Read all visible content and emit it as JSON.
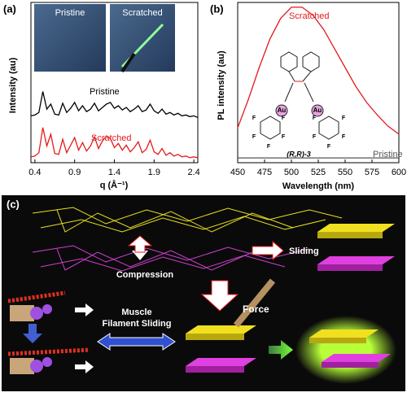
{
  "chart_data": [
    {
      "type": "line",
      "panel": "(a)",
      "xlabel": "q (Å⁻¹)",
      "ylabel": "Intensity (au)",
      "inset_labels": [
        "Pristine",
        "Scratched"
      ],
      "x": [
        0.35,
        0.4,
        0.45,
        0.5,
        0.55,
        0.6,
        0.65,
        0.7,
        0.75,
        0.8,
        0.85,
        0.9,
        0.95,
        1.0,
        1.05,
        1.1,
        1.15,
        1.2,
        1.25,
        1.3,
        1.35,
        1.4,
        1.45,
        1.5,
        1.55,
        1.6,
        1.65,
        1.7,
        1.75,
        1.8,
        1.85,
        1.9,
        1.95,
        2.0,
        2.05,
        2.1,
        2.15,
        2.2,
        2.25,
        2.3,
        2.35,
        2.4,
        2.45
      ],
      "series": [
        {
          "name": "Pristine",
          "color": "#000000",
          "values": [
            5.4,
            5.5,
            5.8,
            8.3,
            6.2,
            6.8,
            5.6,
            5.5,
            6.9,
            5.8,
            6.3,
            7.0,
            6.0,
            6.6,
            5.9,
            6.2,
            6.9,
            6.0,
            6.4,
            6.8,
            7.0,
            6.3,
            6.6,
            6.1,
            6.4,
            5.9,
            6.2,
            6.6,
            5.9,
            6.1,
            6.8,
            6.0,
            5.7,
            6.2,
            5.6,
            5.8,
            5.5,
            5.7,
            5.4,
            5.5,
            5.3,
            5.4,
            5.2
          ]
        },
        {
          "name": "Scratched",
          "color": "#e41a1c",
          "values": [
            0.5,
            0.6,
            1.0,
            4.0,
            1.8,
            3.2,
            0.9,
            0.8,
            2.6,
            1.0,
            1.9,
            2.8,
            1.3,
            2.2,
            1.2,
            1.8,
            2.9,
            1.5,
            2.4,
            3.0,
            2.7,
            1.6,
            2.1,
            1.3,
            1.9,
            1.1,
            1.6,
            2.3,
            1.0,
            1.4,
            2.5,
            1.1,
            0.8,
            1.5,
            0.7,
            1.0,
            0.6,
            0.8,
            0.5,
            0.6,
            0.4,
            0.5,
            0.4
          ]
        }
      ],
      "xlim": [
        0.35,
        2.45
      ],
      "xticks": [
        0.4,
        0.9,
        1.4,
        1.9,
        2.4
      ],
      "ylim": [
        0,
        10
      ]
    },
    {
      "type": "line",
      "panel": "(b)",
      "xlabel": "Wavelength (nm)",
      "ylabel": "PL intensity (au)",
      "molecule": {
        "label": "(R,R)-3",
        "atoms": [
          "Au",
          "Au",
          "F",
          "F",
          "F",
          "F",
          "F",
          "F",
          "F",
          "F",
          "F",
          "F"
        ]
      },
      "x": [
        450,
        460,
        470,
        480,
        490,
        500,
        510,
        520,
        530,
        540,
        550,
        560,
        570,
        580,
        590,
        600
      ],
      "series": [
        {
          "name": "Scratched",
          "color": "#e41a1c",
          "values": [
            0.22,
            0.4,
            0.6,
            0.78,
            0.91,
            0.98,
            0.98,
            0.93,
            0.84,
            0.72,
            0.6,
            0.48,
            0.38,
            0.3,
            0.23,
            0.18
          ]
        },
        {
          "name": "Pristine",
          "color": "#555555",
          "values": [
            0.03,
            0.03,
            0.03,
            0.03,
            0.03,
            0.03,
            0.03,
            0.03,
            0.03,
            0.03,
            0.03,
            0.03,
            0.03,
            0.03,
            0.03,
            0.03
          ]
        }
      ],
      "xlim": [
        450,
        600
      ],
      "xticks": [
        450,
        475,
        500,
        525,
        550,
        575,
        600
      ],
      "ylim": [
        0,
        1
      ]
    }
  ],
  "diagram": {
    "label": "(c)",
    "sliding": "Sliding",
    "compression": "Compression",
    "muscle_lines": [
      "Muscle",
      "Filament Sliding"
    ],
    "force": "Force"
  }
}
